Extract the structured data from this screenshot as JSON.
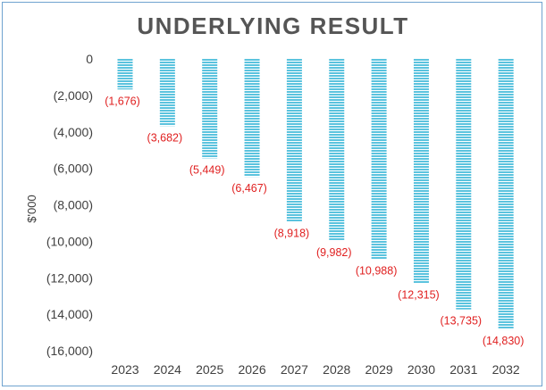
{
  "chart_data": {
    "type": "bar",
    "title": "UNDERLYING RESULT",
    "ylabel": "$'000",
    "xlabel": "",
    "categories": [
      "2023",
      "2024",
      "2025",
      "2026",
      "2027",
      "2028",
      "2029",
      "2030",
      "2031",
      "2032"
    ],
    "values": [
      -1676,
      -3682,
      -5449,
      -6467,
      -8918,
      -9982,
      -10988,
      -12315,
      -13735,
      -14830
    ],
    "data_labels": [
      "(1,676)",
      "(3,682)",
      "(5,449)",
      "(6,467)",
      "(8,918)",
      "(9,982)",
      "(10,988)",
      "(12,315)",
      "(13,735)",
      "(14,830)"
    ],
    "ylim": [
      -16000,
      0
    ],
    "y_ticks": [
      0,
      -2000,
      -4000,
      -6000,
      -8000,
      -10000,
      -12000,
      -14000,
      -16000
    ],
    "y_tick_labels": [
      "0",
      "(2,000)",
      "(4,000)",
      "(6,000)",
      "(8,000)",
      "(10,000)",
      "(12,000)",
      "(14,000)",
      "(16,000)"
    ],
    "grid": false,
    "legend": "none",
    "bar_color": "#5bc3de",
    "bar_pattern": "horizontal-stripes",
    "stripe_color": "#ffffff",
    "label_color": "#e02020",
    "border_color": "#6fa3cf",
    "title_color": "#555555"
  }
}
